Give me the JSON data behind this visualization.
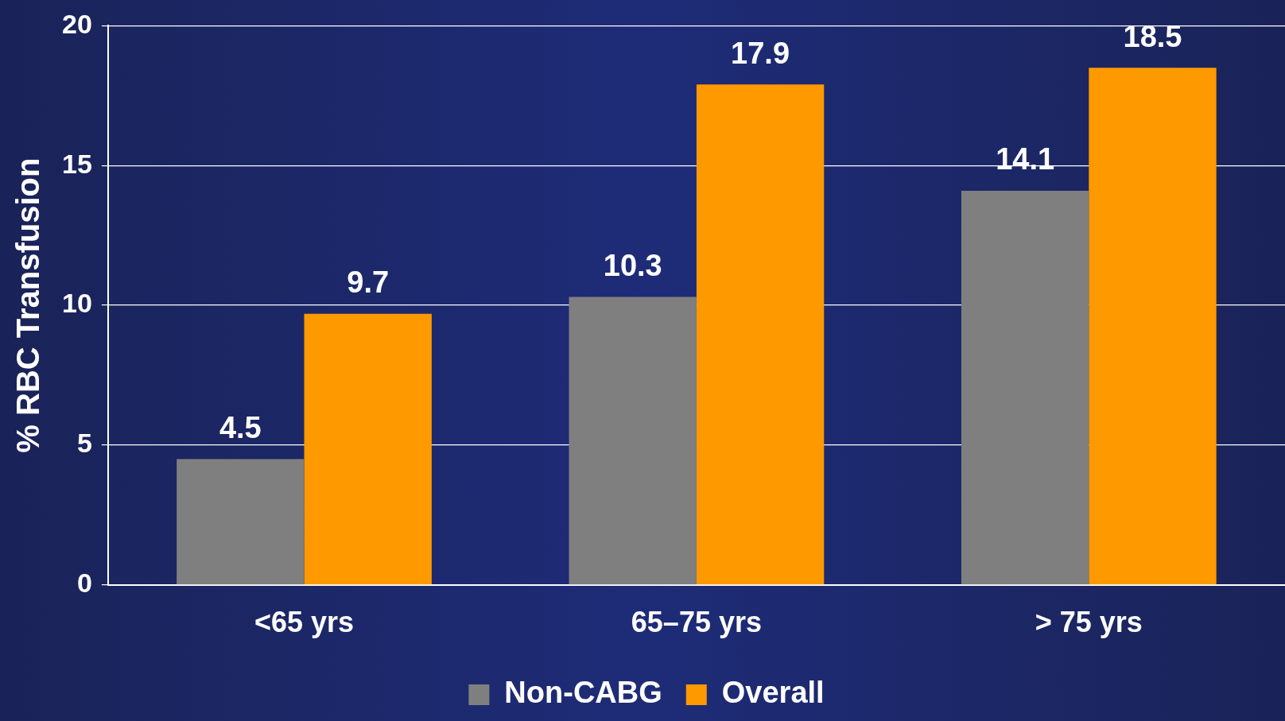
{
  "chart_data": {
    "type": "bar",
    "ylabel": "% RBC Transfusion",
    "categories": [
      "<65 yrs",
      "65–75 yrs",
      "> 75 yrs"
    ],
    "series": [
      {
        "name": "Non-CABG",
        "color": "#7f7f7f",
        "values": [
          4.5,
          10.3,
          14.1
        ]
      },
      {
        "name": "Overall",
        "color": "#ff9900",
        "values": [
          9.7,
          17.9,
          18.5
        ]
      }
    ],
    "ylim": [
      0,
      20
    ],
    "yticks": [
      0,
      5,
      10,
      15,
      20
    ],
    "grid": "y",
    "legend": "bottom",
    "data_labels": true
  }
}
